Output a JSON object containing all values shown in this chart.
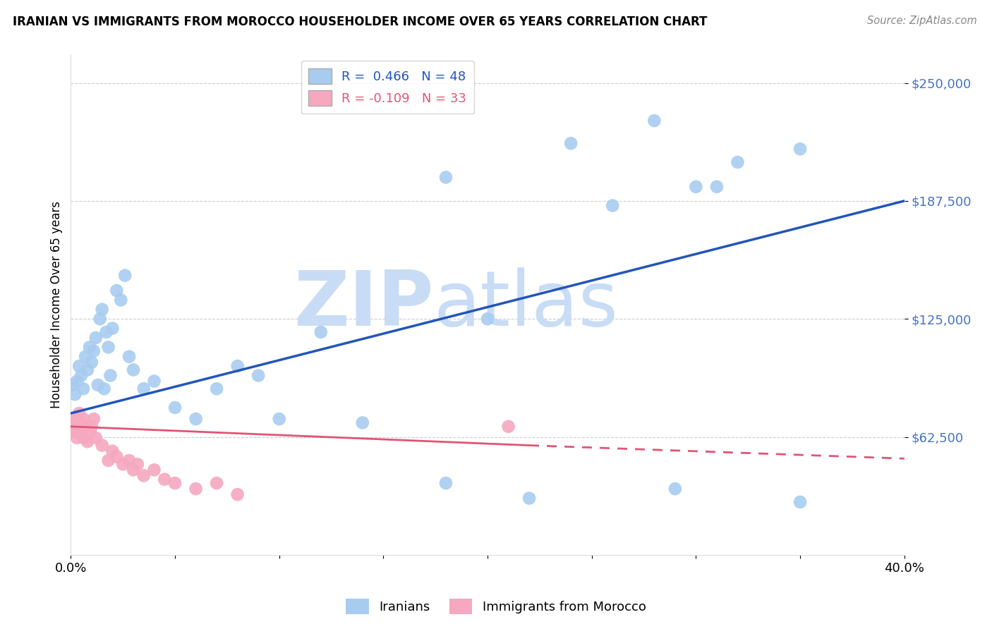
{
  "title": "IRANIAN VS IMMIGRANTS FROM MOROCCO HOUSEHOLDER INCOME OVER 65 YEARS CORRELATION CHART",
  "source": "Source: ZipAtlas.com",
  "ylabel": "Householder Income Over 65 years",
  "blue_R": 0.466,
  "blue_N": 48,
  "pink_R": -0.109,
  "pink_N": 33,
  "blue_color": "#A8CCF0",
  "pink_color": "#F5A8C0",
  "blue_line_color": "#2255BB",
  "pink_line_color": "#E05575",
  "watermark_color": "#C8DCF5",
  "blue_x": [
    0.001,
    0.002,
    0.003,
    0.004,
    0.005,
    0.006,
    0.007,
    0.008,
    0.009,
    0.01,
    0.011,
    0.012,
    0.013,
    0.014,
    0.015,
    0.016,
    0.017,
    0.018,
    0.019,
    0.02,
    0.022,
    0.024,
    0.026,
    0.028,
    0.03,
    0.035,
    0.04,
    0.05,
    0.06,
    0.07,
    0.08,
    0.09,
    0.1,
    0.12,
    0.14,
    0.18,
    0.2,
    0.22,
    0.24,
    0.28,
    0.3,
    0.32,
    0.35,
    0.18,
    0.26,
    0.31,
    0.29,
    0.35
  ],
  "blue_y": [
    90000,
    85000,
    92000,
    100000,
    95000,
    88000,
    105000,
    98000,
    110000,
    102000,
    108000,
    115000,
    90000,
    125000,
    130000,
    88000,
    118000,
    110000,
    95000,
    120000,
    140000,
    135000,
    148000,
    105000,
    98000,
    88000,
    92000,
    78000,
    72000,
    88000,
    100000,
    95000,
    72000,
    118000,
    70000,
    38000,
    125000,
    30000,
    218000,
    230000,
    195000,
    208000,
    215000,
    200000,
    185000,
    195000,
    35000,
    28000
  ],
  "pink_x": [
    0.001,
    0.002,
    0.002,
    0.003,
    0.003,
    0.004,
    0.004,
    0.005,
    0.005,
    0.006,
    0.006,
    0.007,
    0.008,
    0.009,
    0.01,
    0.011,
    0.012,
    0.015,
    0.018,
    0.02,
    0.022,
    0.025,
    0.028,
    0.03,
    0.032,
    0.035,
    0.04,
    0.045,
    0.05,
    0.06,
    0.07,
    0.08,
    0.21
  ],
  "pink_y": [
    68000,
    72000,
    65000,
    70000,
    62000,
    75000,
    68000,
    65000,
    70000,
    72000,
    62000,
    68000,
    60000,
    65000,
    68000,
    72000,
    62000,
    58000,
    50000,
    55000,
    52000,
    48000,
    50000,
    45000,
    48000,
    42000,
    45000,
    40000,
    38000,
    35000,
    38000,
    32000,
    68000
  ]
}
